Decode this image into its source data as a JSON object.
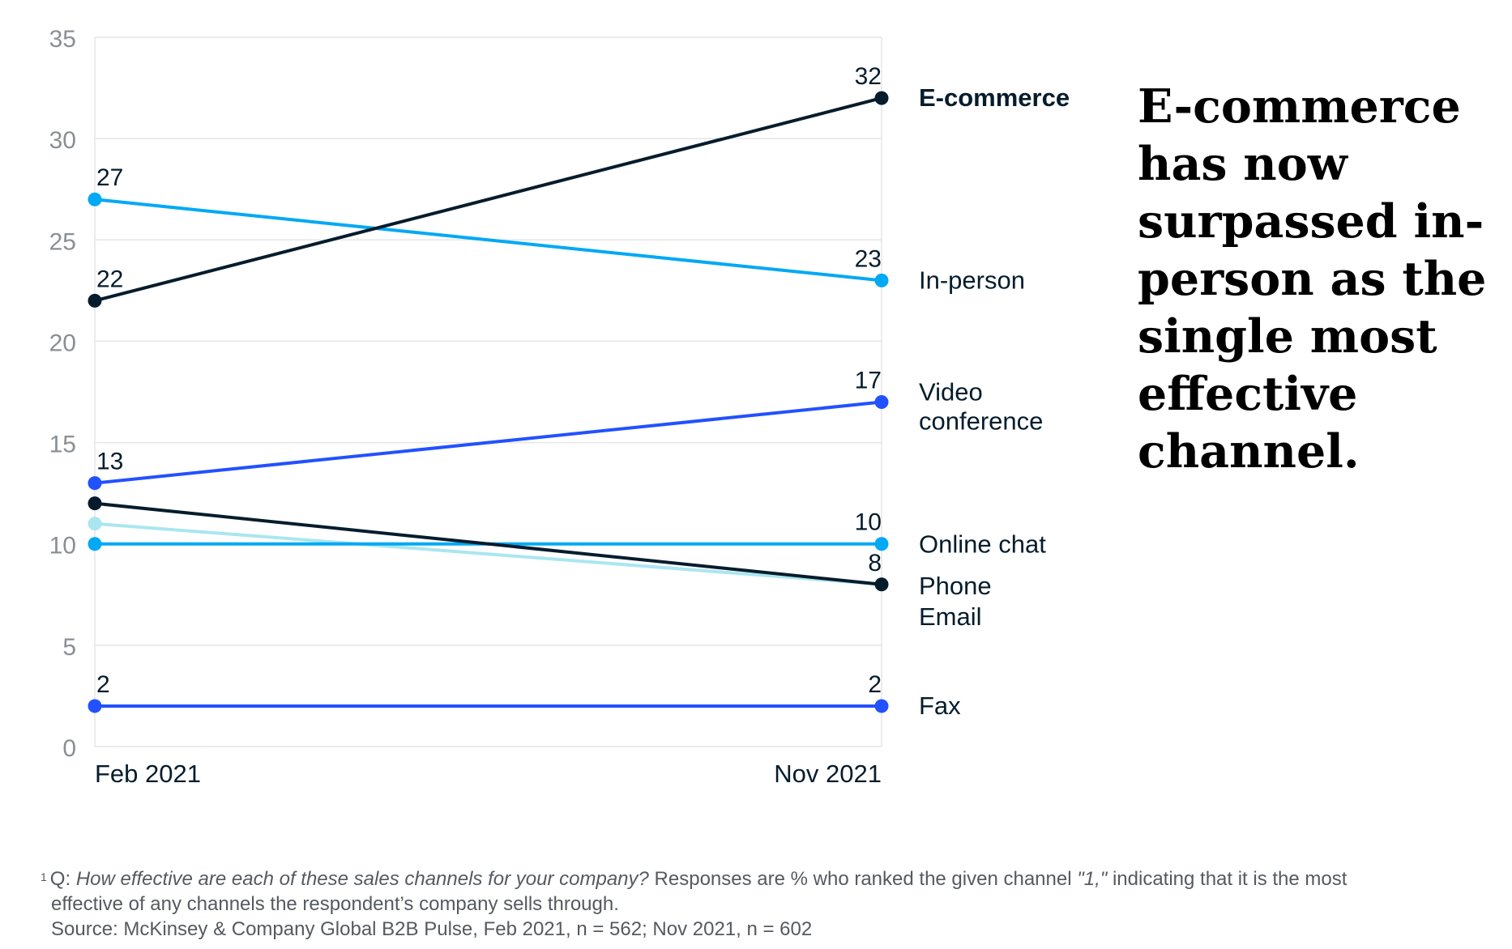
{
  "headline": "E-commerce has now surpassed in-person as the single most effective channel.",
  "footnote": {
    "marker": "1",
    "q_prefix": "Q:",
    "question": "How effective are each of these sales channels for your company?",
    "responses_a": "Responses are % who ranked the given channel",
    "rank_quote": "\"1,\"",
    "responses_b": "indicating that it is the most",
    "line2": "effective of any channels the respondent’s company sells through.",
    "source": "Source: McKinsey & Company Global B2B Pulse, Feb 2021, n = 562; Nov 2021, n = 602"
  },
  "chart_data": {
    "type": "line",
    "title": "",
    "xlabel": "",
    "ylabel": "",
    "categories": [
      "Feb 2021",
      "Nov 2021"
    ],
    "ylim": [
      0,
      35
    ],
    "yticks": [
      "0",
      "5",
      "10",
      "15",
      "20",
      "25",
      "30",
      "35"
    ],
    "series": [
      {
        "name": "E-commerce",
        "values": [
          22,
          32
        ],
        "color": "#051c2c",
        "bold": true,
        "labels": [
          "22",
          "32"
        ],
        "legend": [
          "E-commerce"
        ]
      },
      {
        "name": "In-person",
        "values": [
          27,
          23
        ],
        "color": "#00a9f4",
        "labels": [
          "27",
          "23"
        ],
        "legend": [
          "In-person"
        ]
      },
      {
        "name": "Video conference",
        "values": [
          13,
          17
        ],
        "color": "#2251ff",
        "labels": [
          "13",
          "17"
        ],
        "legend": [
          "Video",
          "conference"
        ]
      },
      {
        "name": "Online chat",
        "values": [
          10,
          10
        ],
        "color": "#00a9f4",
        "labels": [
          "",
          "10"
        ],
        "legend": [
          "Online chat"
        ]
      },
      {
        "name": "Phone",
        "values": [
          12,
          8
        ],
        "color": "#051c2c",
        "labels": [
          "",
          "8"
        ],
        "legend": [
          "Phone"
        ]
      },
      {
        "name": "Email",
        "values": [
          11,
          8
        ],
        "color": "#aae6f0",
        "labels": [
          "",
          ""
        ],
        "legend": [
          "Email"
        ]
      },
      {
        "name": "Fax",
        "values": [
          2,
          2
        ],
        "color": "#2251ff",
        "labels": [
          "2",
          "2"
        ],
        "legend": [
          "Fax"
        ]
      }
    ]
  }
}
